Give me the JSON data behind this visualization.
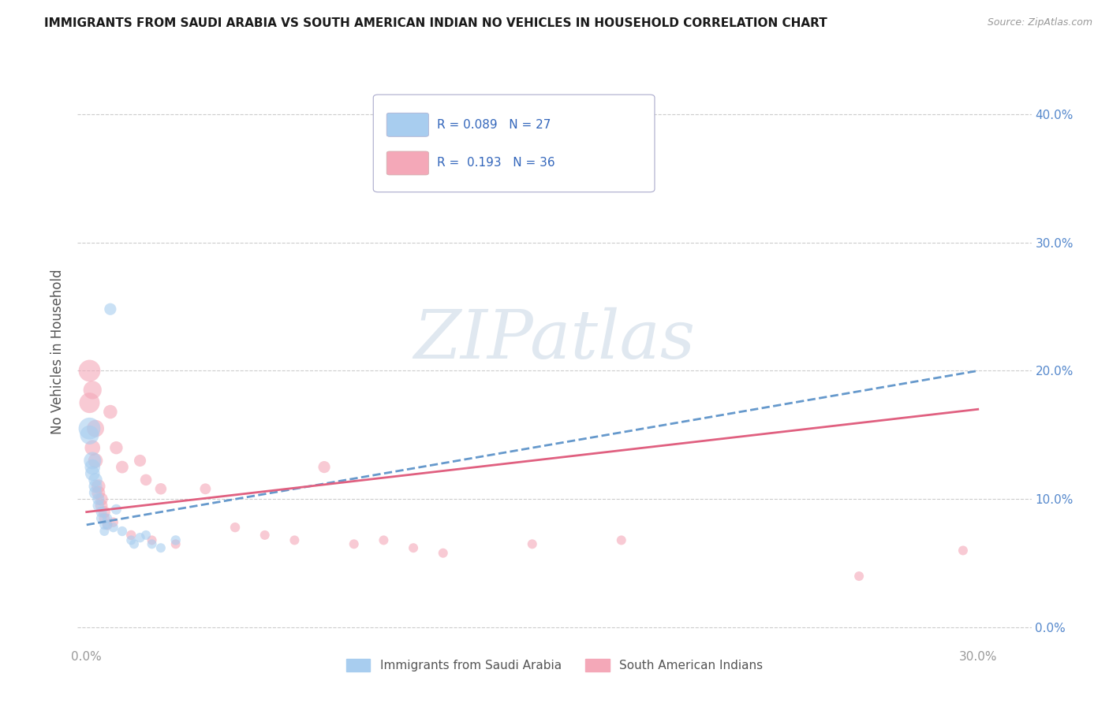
{
  "title": "IMMIGRANTS FROM SAUDI ARABIA VS SOUTH AMERICAN INDIAN NO VEHICLES IN HOUSEHOLD CORRELATION CHART",
  "source": "Source: ZipAtlas.com",
  "xlim": [
    -0.003,
    0.318
  ],
  "ylim": [
    -0.015,
    0.445
  ],
  "ylabel": "No Vehicles in Household",
  "color_blue": "#A8CDEF",
  "color_pink": "#F4A8B8",
  "line_blue": "#6699CC",
  "line_pink": "#E06080",
  "title_color": "#1a1a1a",
  "axis_label_color": "#555555",
  "tick_color": "#999999",
  "right_tick_color": "#5588CC",
  "grid_color": "#CCCCCC",
  "watermark_color": "#E0E8F0",
  "watermark_text": "ZIPatlas",
  "blue_scatter": [
    [
      0.001,
      0.155
    ],
    [
      0.001,
      0.15
    ],
    [
      0.002,
      0.13
    ],
    [
      0.002,
      0.125
    ],
    [
      0.002,
      0.12
    ],
    [
      0.003,
      0.115
    ],
    [
      0.003,
      0.11
    ],
    [
      0.003,
      0.105
    ],
    [
      0.004,
      0.1
    ],
    [
      0.004,
      0.095
    ],
    [
      0.005,
      0.09
    ],
    [
      0.005,
      0.085
    ],
    [
      0.006,
      0.08
    ],
    [
      0.006,
      0.075
    ],
    [
      0.007,
      0.085
    ],
    [
      0.007,
      0.08
    ],
    [
      0.008,
      0.248
    ],
    [
      0.009,
      0.078
    ],
    [
      0.01,
      0.092
    ],
    [
      0.012,
      0.075
    ],
    [
      0.015,
      0.068
    ],
    [
      0.016,
      0.065
    ],
    [
      0.018,
      0.07
    ],
    [
      0.02,
      0.072
    ],
    [
      0.022,
      0.065
    ],
    [
      0.025,
      0.062
    ],
    [
      0.03,
      0.068
    ]
  ],
  "blue_sizes": [
    400,
    300,
    250,
    200,
    180,
    160,
    150,
    140,
    120,
    110,
    100,
    90,
    80,
    75,
    80,
    75,
    120,
    80,
    90,
    80,
    75,
    75,
    80,
    75,
    75,
    75,
    80
  ],
  "pink_scatter": [
    [
      0.001,
      0.2
    ],
    [
      0.001,
      0.175
    ],
    [
      0.002,
      0.185
    ],
    [
      0.002,
      0.14
    ],
    [
      0.003,
      0.155
    ],
    [
      0.003,
      0.13
    ],
    [
      0.004,
      0.11
    ],
    [
      0.004,
      0.105
    ],
    [
      0.005,
      0.1
    ],
    [
      0.005,
      0.095
    ],
    [
      0.006,
      0.09
    ],
    [
      0.006,
      0.085
    ],
    [
      0.007,
      0.08
    ],
    [
      0.008,
      0.168
    ],
    [
      0.009,
      0.082
    ],
    [
      0.01,
      0.14
    ],
    [
      0.012,
      0.125
    ],
    [
      0.015,
      0.072
    ],
    [
      0.018,
      0.13
    ],
    [
      0.02,
      0.115
    ],
    [
      0.022,
      0.068
    ],
    [
      0.025,
      0.108
    ],
    [
      0.03,
      0.065
    ],
    [
      0.04,
      0.108
    ],
    [
      0.05,
      0.078
    ],
    [
      0.06,
      0.072
    ],
    [
      0.07,
      0.068
    ],
    [
      0.08,
      0.125
    ],
    [
      0.09,
      0.065
    ],
    [
      0.1,
      0.068
    ],
    [
      0.11,
      0.062
    ],
    [
      0.12,
      0.058
    ],
    [
      0.15,
      0.065
    ],
    [
      0.18,
      0.068
    ],
    [
      0.26,
      0.04
    ],
    [
      0.295,
      0.06
    ]
  ],
  "pink_sizes": [
    400,
    350,
    280,
    200,
    250,
    180,
    160,
    150,
    140,
    130,
    120,
    100,
    90,
    160,
    80,
    140,
    130,
    80,
    120,
    110,
    75,
    110,
    75,
    100,
    80,
    75,
    75,
    120,
    75,
    75,
    75,
    75,
    75,
    75,
    75,
    75
  ],
  "blue_line_x": [
    0.0,
    0.3
  ],
  "blue_line_y": [
    0.08,
    0.2
  ],
  "pink_line_x": [
    0.0,
    0.3
  ],
  "pink_line_y": [
    0.09,
    0.17
  ],
  "legend_label1": "Immigrants from Saudi Arabia",
  "legend_label2": "South American Indians",
  "legend_r1": "R =  0.089",
  "legend_n1": "N = 27",
  "legend_r2": "R =  0.193",
  "legend_n2": "N = 36"
}
